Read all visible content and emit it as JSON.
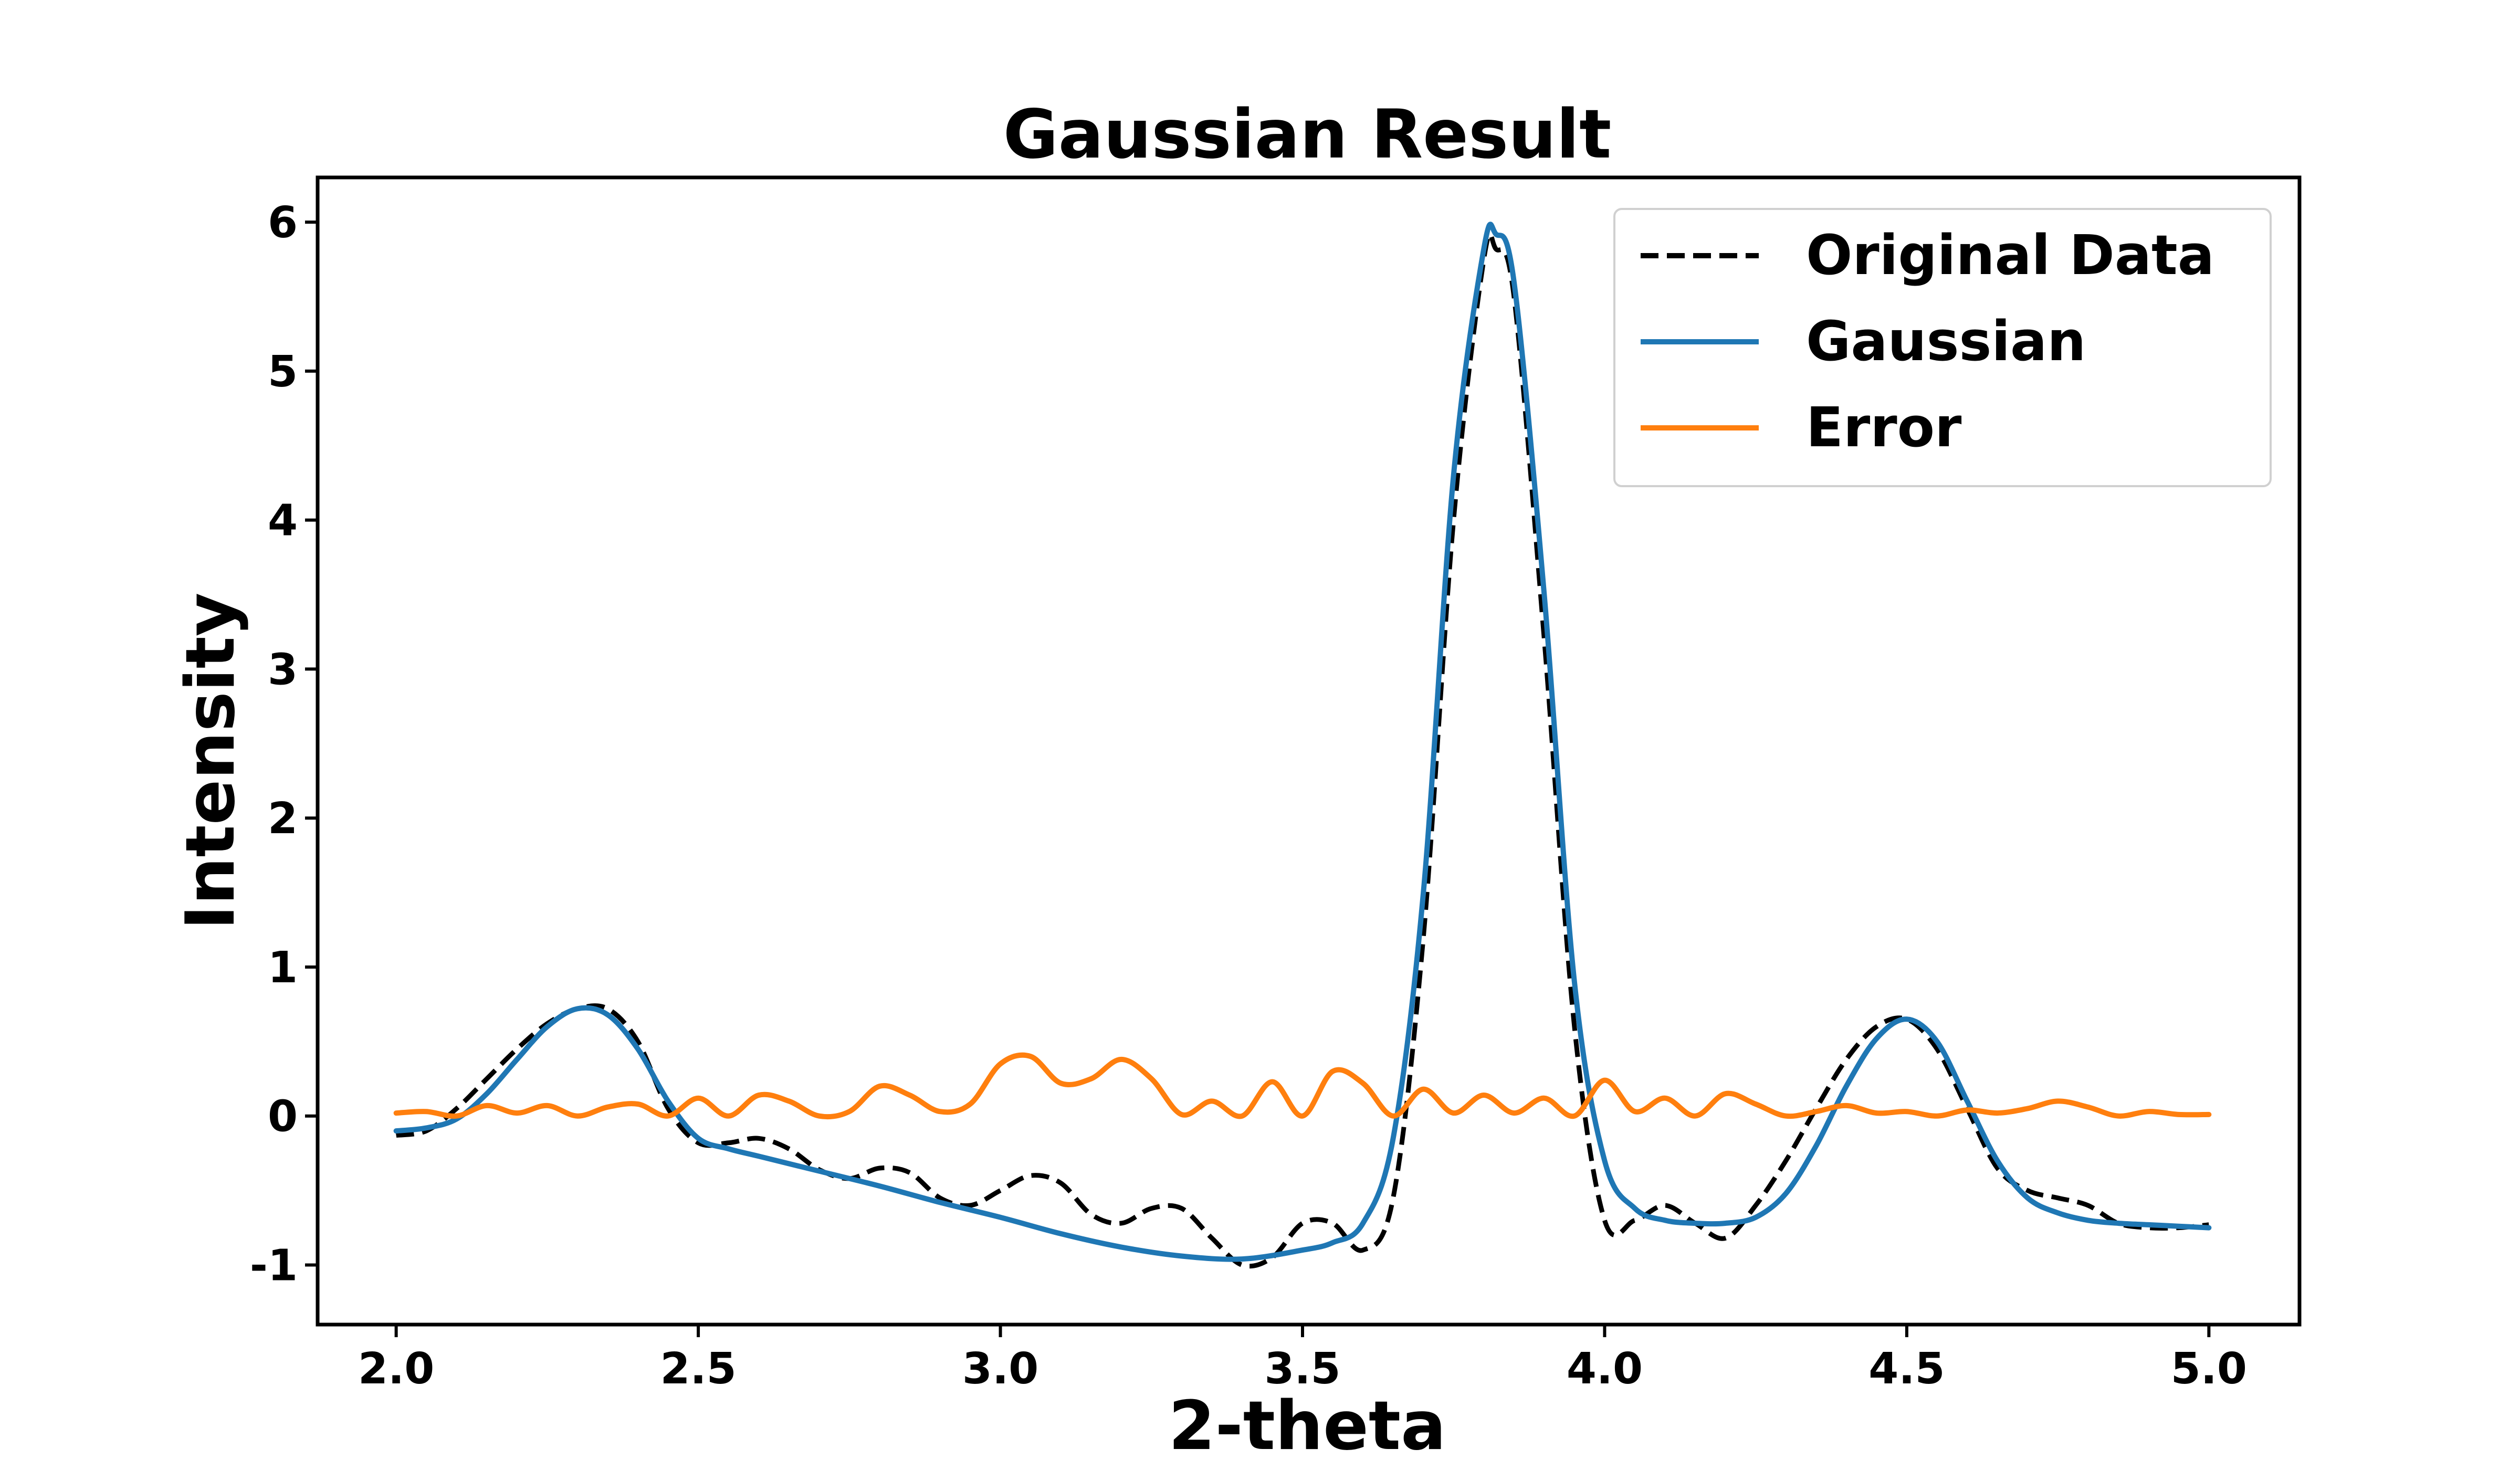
{
  "chart_data": {
    "type": "line",
    "title": "Gaussian Result",
    "xlabel": "2-theta",
    "ylabel": "Intensity",
    "xlim": [
      1.87,
      5.15
    ],
    "ylim": [
      -1.4,
      6.3
    ],
    "xticks": [
      2.0,
      2.5,
      3.0,
      3.5,
      4.0,
      4.5,
      5.0
    ],
    "xtick_labels": [
      "2.0",
      "2.5",
      "3.0",
      "3.5",
      "4.0",
      "4.5",
      "5.0"
    ],
    "yticks": [
      -1,
      0,
      1,
      2,
      3,
      4,
      5,
      6
    ],
    "ytick_labels": [
      "-1",
      "0",
      "1",
      "2",
      "3",
      "4",
      "5",
      "6"
    ],
    "grid": false,
    "legend_position": "top-right",
    "series": [
      {
        "name": "Original Data",
        "color": "#000000",
        "style": "dashed",
        "x": [
          2.0,
          2.05,
          2.1,
          2.15,
          2.2,
          2.25,
          2.3,
          2.35,
          2.4,
          2.45,
          2.5,
          2.55,
          2.6,
          2.65,
          2.7,
          2.75,
          2.8,
          2.85,
          2.9,
          2.95,
          3.0,
          3.05,
          3.1,
          3.15,
          3.2,
          3.25,
          3.3,
          3.35,
          3.4,
          3.45,
          3.5,
          3.55,
          3.6,
          3.65,
          3.7,
          3.75,
          3.8,
          3.82,
          3.85,
          3.9,
          3.95,
          4.0,
          4.05,
          4.1,
          4.15,
          4.2,
          4.25,
          4.3,
          4.35,
          4.4,
          4.45,
          4.5,
          4.55,
          4.6,
          4.65,
          4.7,
          4.75,
          4.8,
          4.85,
          4.9,
          4.95,
          5.0
        ],
        "y": [
          -0.13,
          -0.1,
          0.05,
          0.25,
          0.45,
          0.62,
          0.72,
          0.72,
          0.5,
          0.05,
          -0.18,
          -0.18,
          -0.15,
          -0.22,
          -0.36,
          -0.42,
          -0.35,
          -0.38,
          -0.55,
          -0.6,
          -0.5,
          -0.4,
          -0.45,
          -0.66,
          -0.72,
          -0.62,
          -0.62,
          -0.82,
          -1.0,
          -0.95,
          -0.72,
          -0.72,
          -0.9,
          -0.55,
          1.2,
          4.0,
          5.75,
          5.82,
          5.5,
          3.2,
          0.6,
          -0.7,
          -0.7,
          -0.6,
          -0.72,
          -0.82,
          -0.6,
          -0.3,
          0.05,
          0.38,
          0.6,
          0.65,
          0.45,
          0.05,
          -0.35,
          -0.5,
          -0.55,
          -0.6,
          -0.72,
          -0.75,
          -0.75,
          -0.73
        ]
      },
      {
        "name": "Gaussian",
        "color": "#1f77b4",
        "style": "solid",
        "x": [
          2.0,
          2.05,
          2.1,
          2.15,
          2.2,
          2.25,
          2.3,
          2.35,
          2.4,
          2.45,
          2.5,
          2.55,
          2.6,
          2.7,
          2.8,
          2.9,
          3.0,
          3.1,
          3.2,
          3.3,
          3.4,
          3.5,
          3.55,
          3.6,
          3.65,
          3.7,
          3.75,
          3.8,
          3.82,
          3.85,
          3.9,
          3.95,
          4.0,
          4.05,
          4.1,
          4.15,
          4.2,
          4.25,
          4.3,
          4.35,
          4.4,
          4.45,
          4.5,
          4.55,
          4.6,
          4.65,
          4.7,
          4.75,
          4.8,
          4.85,
          4.9,
          4.95,
          5.0
        ],
        "y": [
          -0.1,
          -0.08,
          -0.02,
          0.15,
          0.38,
          0.6,
          0.72,
          0.68,
          0.45,
          0.1,
          -0.15,
          -0.22,
          -0.27,
          -0.37,
          -0.47,
          -0.58,
          -0.68,
          -0.79,
          -0.88,
          -0.94,
          -0.96,
          -0.9,
          -0.85,
          -0.72,
          -0.15,
          1.5,
          4.3,
          5.82,
          5.92,
          5.6,
          3.5,
          0.9,
          -0.3,
          -0.62,
          -0.7,
          -0.72,
          -0.72,
          -0.68,
          -0.52,
          -0.2,
          0.2,
          0.52,
          0.65,
          0.5,
          0.1,
          -0.3,
          -0.55,
          -0.65,
          -0.7,
          -0.72,
          -0.73,
          -0.74,
          -0.75
        ]
      },
      {
        "name": "Error",
        "color": "#ff7f0e",
        "style": "solid",
        "x": [
          2.0,
          2.05,
          2.1,
          2.15,
          2.2,
          2.25,
          2.3,
          2.35,
          2.4,
          2.45,
          2.5,
          2.55,
          2.6,
          2.65,
          2.7,
          2.75,
          2.8,
          2.85,
          2.9,
          2.95,
          3.0,
          3.05,
          3.1,
          3.15,
          3.2,
          3.25,
          3.3,
          3.35,
          3.4,
          3.45,
          3.5,
          3.55,
          3.6,
          3.65,
          3.7,
          3.75,
          3.8,
          3.85,
          3.9,
          3.95,
          4.0,
          4.05,
          4.1,
          4.15,
          4.2,
          4.25,
          4.3,
          4.35,
          4.4,
          4.45,
          4.5,
          4.55,
          4.6,
          4.65,
          4.7,
          4.75,
          4.8,
          4.85,
          4.9,
          4.95,
          5.0
        ],
        "y": [
          0.02,
          0.03,
          0.0,
          0.07,
          0.02,
          0.07,
          0.0,
          0.06,
          0.08,
          0.0,
          0.12,
          0.0,
          0.14,
          0.1,
          0.0,
          0.03,
          0.2,
          0.14,
          0.03,
          0.08,
          0.35,
          0.4,
          0.22,
          0.25,
          0.38,
          0.25,
          0.01,
          0.1,
          0.0,
          0.23,
          0.0,
          0.3,
          0.22,
          0.0,
          0.18,
          0.02,
          0.14,
          0.02,
          0.12,
          0.0,
          0.24,
          0.03,
          0.12,
          0.0,
          0.15,
          0.08,
          0.0,
          0.03,
          0.07,
          0.02,
          0.03,
          0.0,
          0.04,
          0.02,
          0.05,
          0.1,
          0.06,
          0.0,
          0.03,
          0.01,
          0.01
        ]
      }
    ]
  }
}
